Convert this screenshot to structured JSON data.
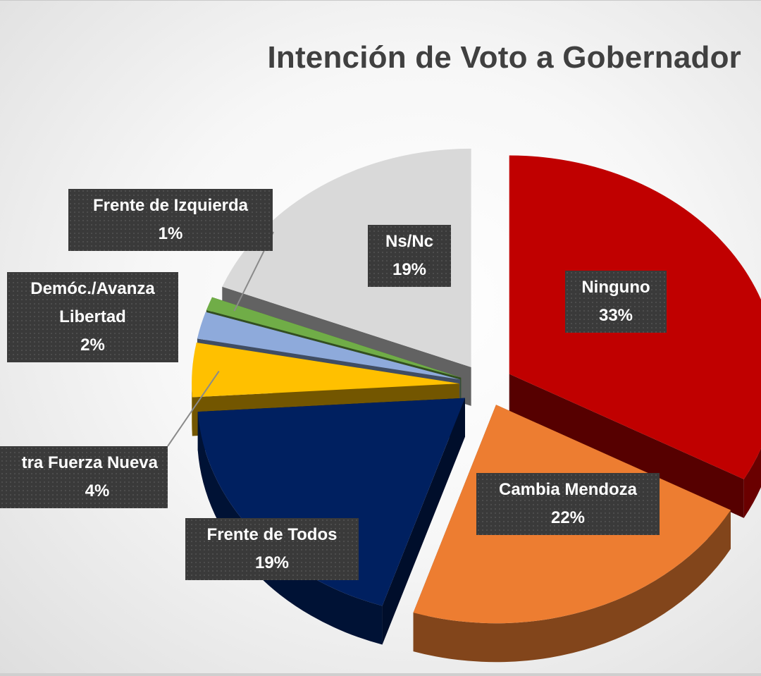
{
  "chart_data": {
    "type": "pie",
    "title": "Intención de Voto a Gobernador",
    "slices": [
      {
        "label": "Ninguno",
        "value": 33,
        "value_label": "33%",
        "color": "#c00000"
      },
      {
        "label": "Cambia Mendoza",
        "value": 22,
        "value_label": "22%",
        "color": "#ed7d31"
      },
      {
        "label": "Frente de Todos",
        "value": 19,
        "value_label": "19%",
        "color": "#002060"
      },
      {
        "label": "tra Fuerza Nueva",
        "value": 4,
        "value_label": "4%",
        "color": "#ffc000"
      },
      {
        "label": "Demóc./Avanza Libertad",
        "label_lines": [
          "Demóc./Avanza",
          "Libertad"
        ],
        "value": 2,
        "value_label": "2%",
        "color": "#8eaadb"
      },
      {
        "label": "Frente de Izquierda",
        "value": 1,
        "value_label": "1%",
        "color": "#70ad47"
      },
      {
        "label": "Ns/Nc",
        "value": 19,
        "value_label": "19%",
        "color": "#d9d9d9"
      }
    ],
    "legend": "none",
    "style": "3d-exploded"
  }
}
